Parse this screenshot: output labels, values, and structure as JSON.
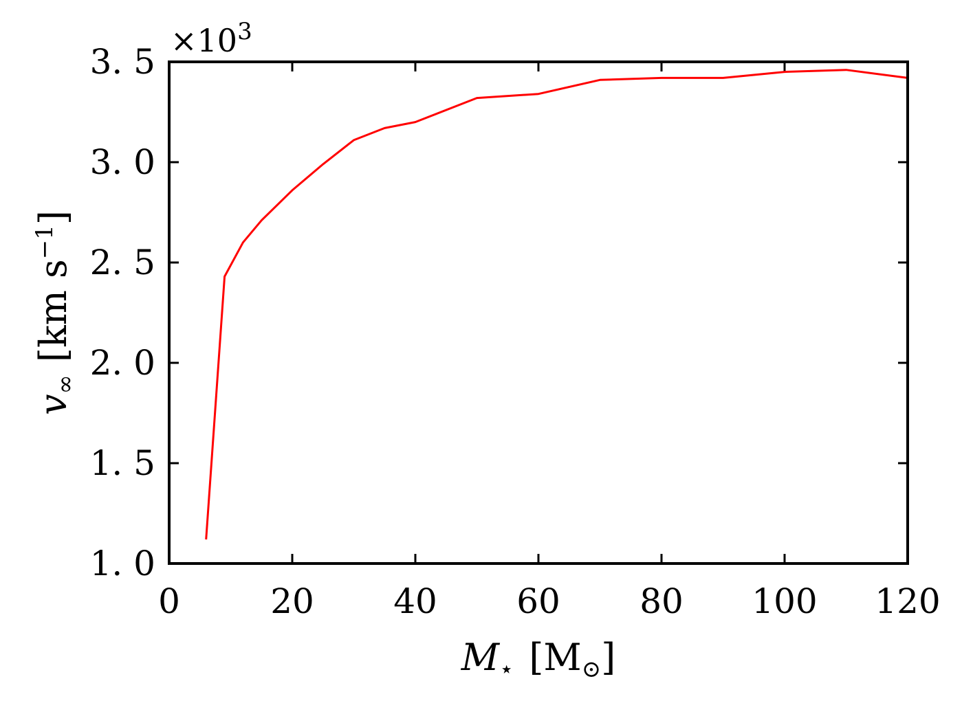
{
  "chart_data": {
    "type": "line",
    "title": "",
    "xlabel": {
      "symbol": "M",
      "subscript": "⋆",
      "unit_open": "[M",
      "unit_sub": "⊙",
      "unit_close": "]"
    },
    "ylabel": {
      "symbol": "v",
      "subscript": "∞",
      "unit_open": "[km s",
      "unit_sup": "−1",
      "unit_close": "]"
    },
    "y_multiplier": {
      "prefix": "×10",
      "exponent": "3"
    },
    "xlim": [
      0,
      120
    ],
    "ylim": [
      1.0,
      3.5
    ],
    "x_ticks": [
      0,
      20,
      40,
      60,
      80,
      100,
      120
    ],
    "x_tick_labels": [
      "0",
      "20",
      "40",
      "60",
      "80",
      "100",
      "120"
    ],
    "y_ticks": [
      1.0,
      1.5,
      2.0,
      2.5,
      3.0,
      3.5
    ],
    "y_tick_labels": [
      "1. 0",
      "1. 5",
      "2. 0",
      "2. 5",
      "3. 0",
      "3. 5"
    ],
    "grid": false,
    "legend": "none",
    "series": [
      {
        "color": "#ff0000",
        "x": [
          6,
          9,
          12,
          15,
          20,
          25,
          30,
          35,
          40,
          50,
          60,
          70,
          80,
          90,
          100,
          110,
          120
        ],
        "y": [
          1.12,
          2.43,
          2.6,
          2.71,
          2.86,
          2.99,
          3.11,
          3.17,
          3.2,
          3.32,
          3.34,
          3.41,
          3.42,
          3.42,
          3.45,
          3.46,
          3.42
        ]
      }
    ]
  }
}
